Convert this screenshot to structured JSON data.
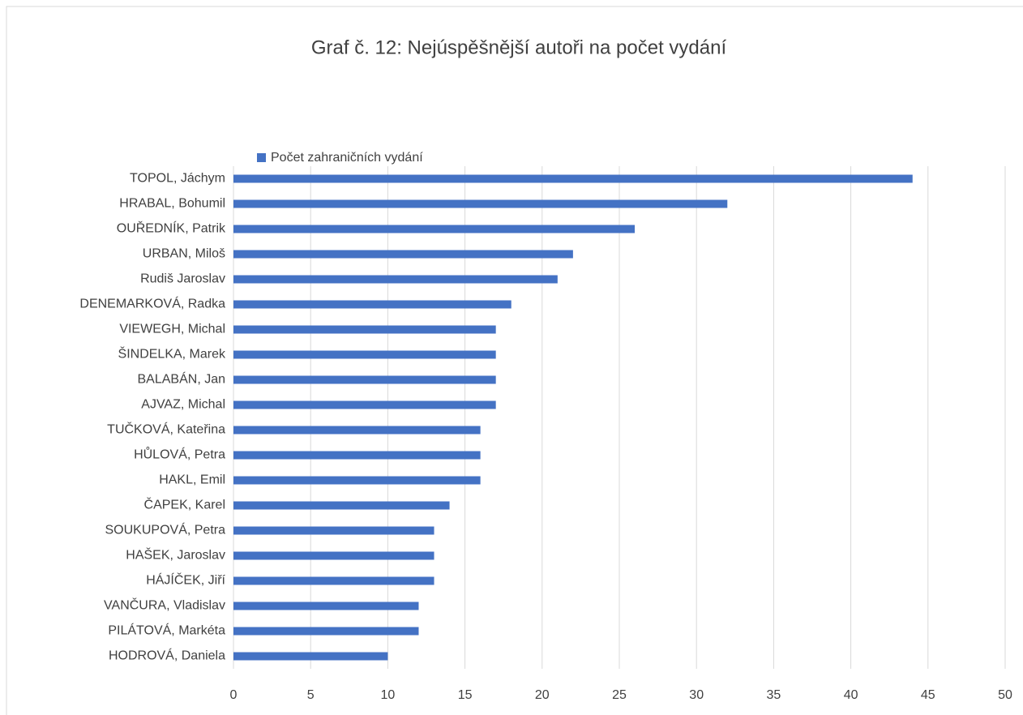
{
  "chart_data": {
    "type": "bar",
    "orientation": "horizontal",
    "title": "Graf č. 12: Nejúspěšnější autoři na počet vydání",
    "categories": [
      "TOPOL, Jáchym",
      "HRABAL, Bohumil",
      "OUŘEDNÍK, Patrik",
      "URBAN, Miloš",
      "Rudiš Jaroslav",
      "DENEMARKOVÁ, Radka",
      "VIEWEGH, Michal",
      "ŠINDELKA, Marek",
      "BALABÁN, Jan",
      "AJVAZ, Michal",
      "TUČKOVÁ, Kateřina",
      "HŮLOVÁ, Petra",
      "HAKL, Emil",
      "ČAPEK, Karel",
      "SOUKUPOVÁ, Petra",
      "HAŠEK, Jaroslav",
      "HÁJÍČEK, Jiří",
      "VANČURA, Vladislav",
      "PILÁTOVÁ, Markéta",
      "HODROVÁ, Daniela"
    ],
    "series": [
      {
        "name": "Počet zahraničních vydání",
        "color": "#4472c4",
        "values": [
          44,
          32,
          26,
          22,
          21,
          18,
          17,
          17,
          17,
          17,
          16,
          16,
          16,
          14,
          13,
          13,
          13,
          12,
          12,
          10
        ]
      }
    ],
    "xlim": [
      0,
      50
    ],
    "xticks": [
      0,
      5,
      10,
      15,
      20,
      25,
      30,
      35,
      40,
      45,
      50
    ],
    "grid": true,
    "legend": "top"
  }
}
